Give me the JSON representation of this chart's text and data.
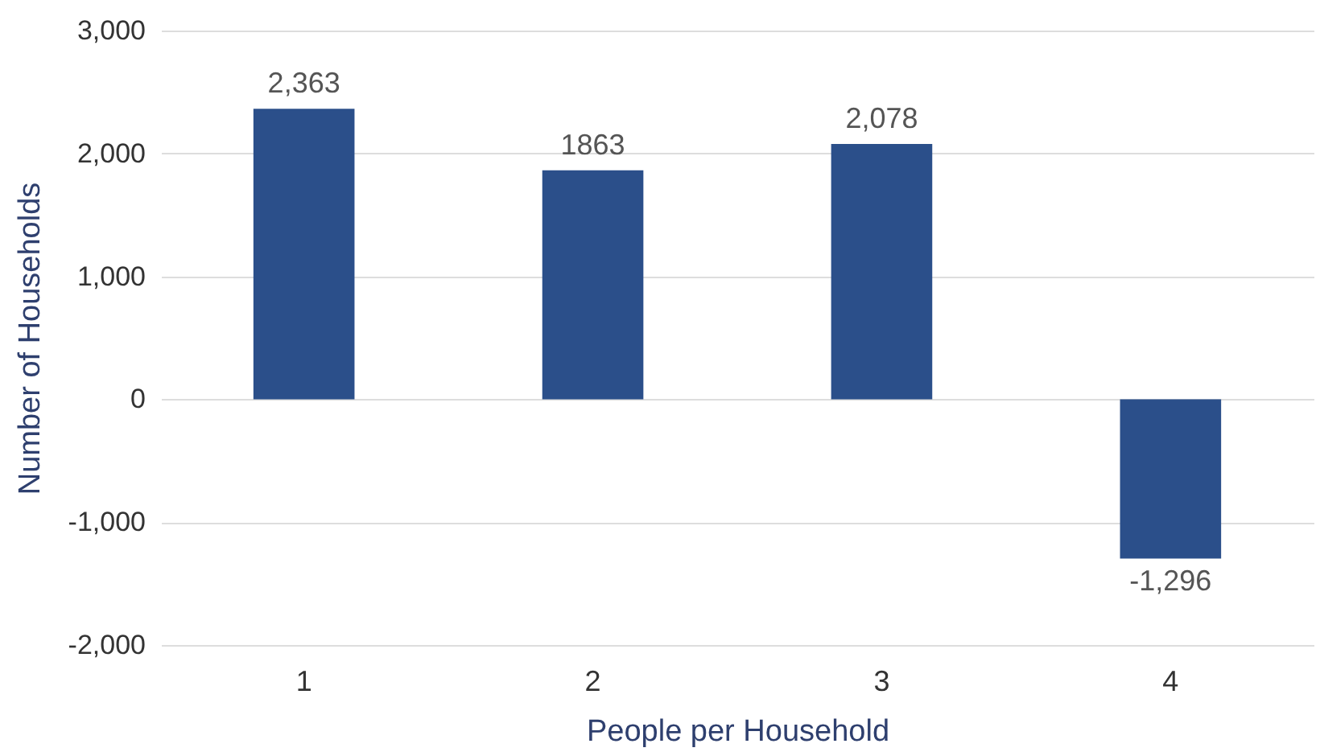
{
  "chart_data": {
    "type": "bar",
    "xlabel": "People per Household",
    "ylabel": "Number of Households",
    "categories": [
      "1",
      "2",
      "3",
      "4"
    ],
    "values": [
      2363,
      1863,
      2078,
      -1296
    ],
    "value_labels": [
      "2,363",
      "1863",
      "2,078",
      "-1,296"
    ],
    "color": "#2b4f8a",
    "ylim": [
      -2000,
      3000
    ],
    "yticks": [
      {
        "value": -2000,
        "label": "-2,000"
      },
      {
        "value": -1000,
        "label": "-1,000"
      },
      0,
      {
        "value": 1000,
        "label": "1,000"
      },
      {
        "value": 2000,
        "label": "2,000"
      },
      {
        "value": 3000,
        "label": "3,000"
      }
    ],
    "grid": "y"
  }
}
